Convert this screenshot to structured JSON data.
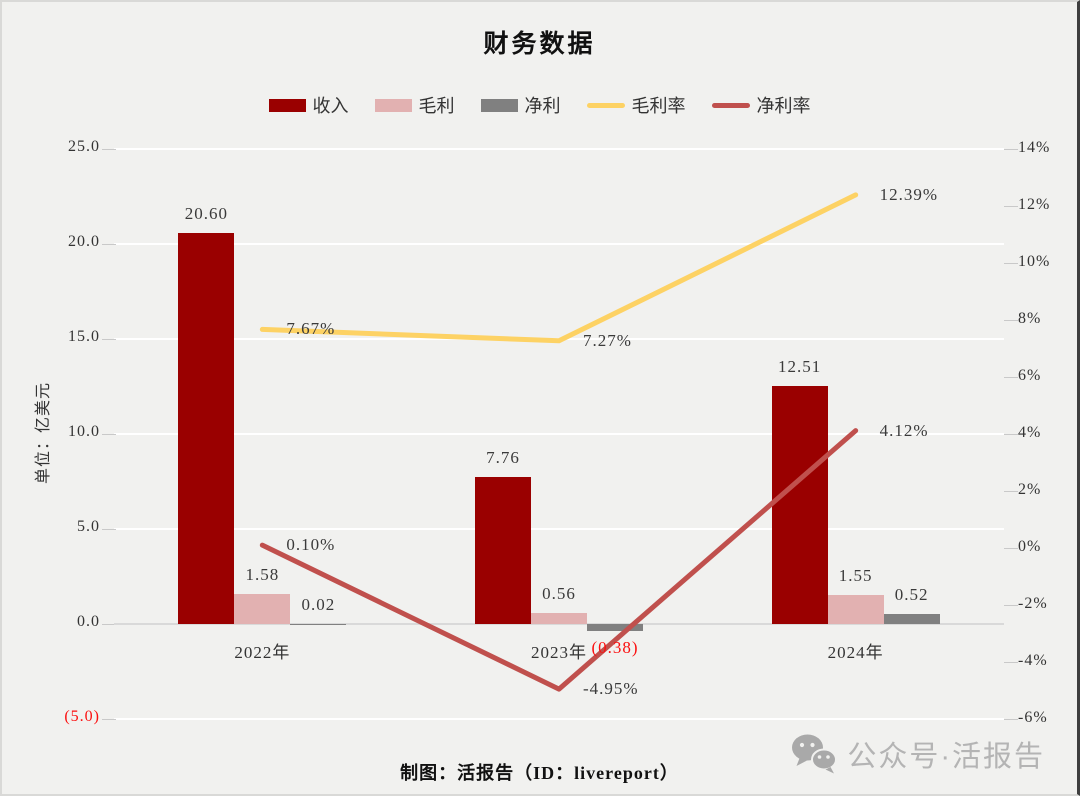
{
  "title": "财务数据",
  "legend": {
    "items": [
      {
        "label": "收入",
        "type": "bar",
        "color": "#9a0000"
      },
      {
        "label": "毛利",
        "type": "bar",
        "color": "#e2b1b1"
      },
      {
        "label": "净利",
        "type": "bar",
        "color": "#808080"
      },
      {
        "label": "毛利率",
        "type": "line",
        "color": "#fdd264"
      },
      {
        "label": "净利率",
        "type": "line",
        "color": "#c0504d"
      }
    ]
  },
  "chart_data": {
    "type": "bar",
    "subtype": "bar-line combo, dual axis",
    "categories": [
      "2022年",
      "2023年",
      "2024年"
    ],
    "bar_series": [
      {
        "name": "收入",
        "color": "#9a0000",
        "values": [
          20.6,
          7.76,
          12.51
        ],
        "labels": [
          "20.60",
          "7.76",
          "12.51"
        ]
      },
      {
        "name": "毛利",
        "color": "#e2b1b1",
        "values": [
          1.58,
          0.56,
          1.55
        ],
        "labels": [
          "1.58",
          "0.56",
          "1.55"
        ]
      },
      {
        "name": "净利",
        "color": "#808080",
        "values": [
          0.02,
          -0.38,
          0.52
        ],
        "labels": [
          "0.02",
          "(0.38)",
          "0.52"
        ]
      }
    ],
    "line_series": [
      {
        "name": "毛利率",
        "color": "#fdd264",
        "values_pct": [
          7.67,
          7.27,
          12.39
        ],
        "labels": [
          "7.67%",
          "7.27%",
          "12.39%"
        ]
      },
      {
        "name": "净利率",
        "color": "#c0504d",
        "values_pct": [
          0.1,
          -4.95,
          4.12
        ],
        "labels": [
          "0.10%",
          "-4.95%",
          "4.12%"
        ]
      }
    ],
    "left_axis": {
      "title": "单位：亿美元",
      "ticks": [
        "25.0",
        "20.0",
        "15.0",
        "10.0",
        "5.0",
        "0.0",
        "(5.0)"
      ],
      "min": -5,
      "max": 25
    },
    "right_axis": {
      "ticks": [
        "14%",
        "12%",
        "10%",
        "8%",
        "6%",
        "4%",
        "2%",
        "0%",
        "-2%",
        "-4%",
        "-6%"
      ],
      "min": -6,
      "max": 14
    },
    "grid": true,
    "legend_position": "top"
  },
  "footer": {
    "credit": "制图：活报告（ID：livereport）"
  },
  "watermark": {
    "text": "公众号·活报告"
  },
  "colors": {
    "background": "#f1f1ef",
    "gridline": "#ffffff",
    "axis_line": "#d9d9d9",
    "label": "#3a3a3a",
    "negative": "#fb0f0f",
    "watermark": "#b4b4b4"
  }
}
